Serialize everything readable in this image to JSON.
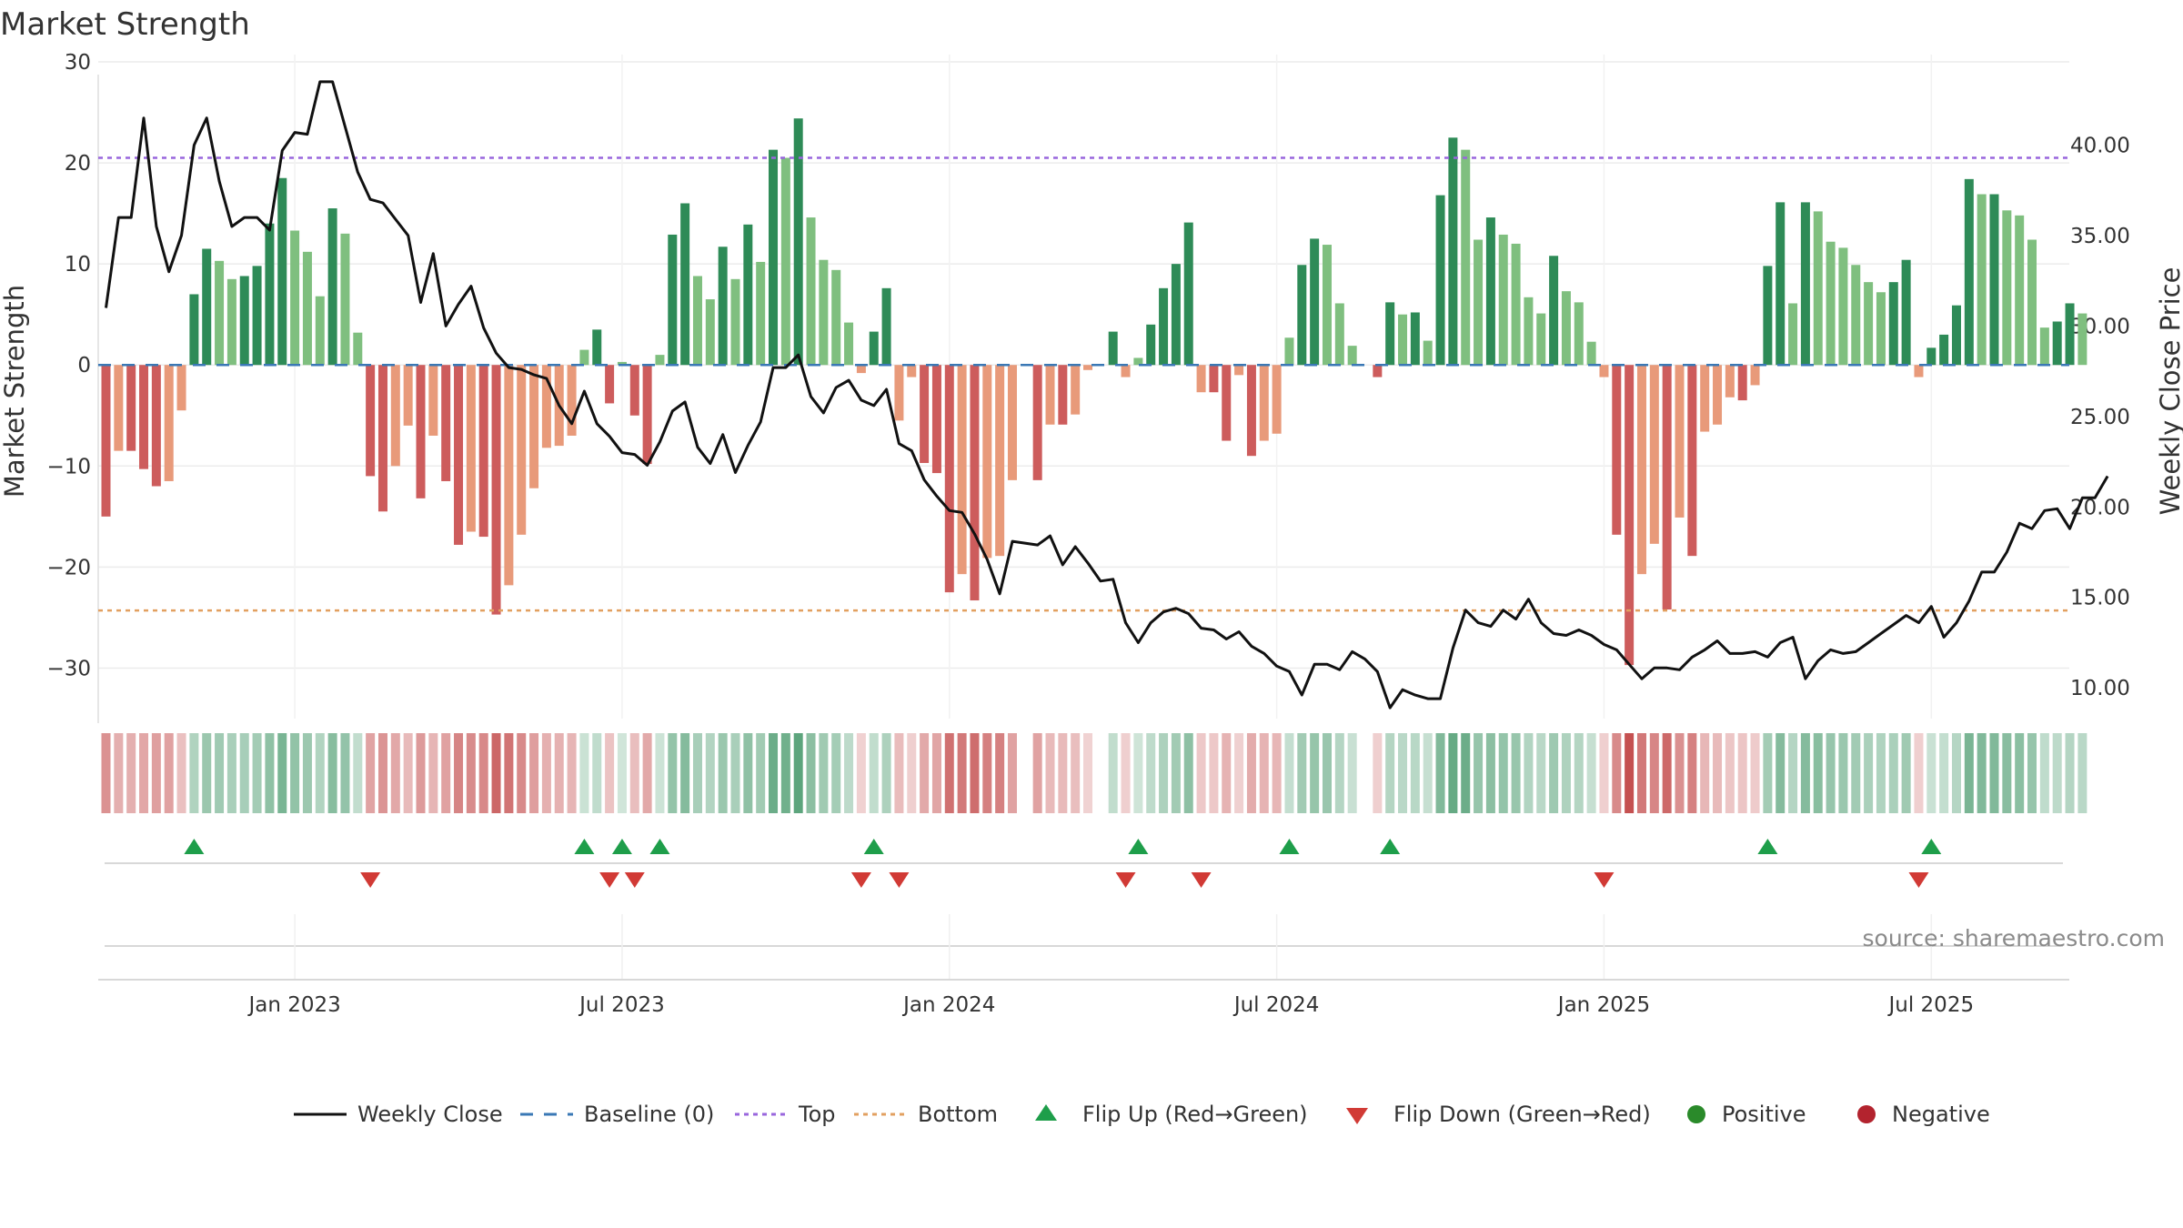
{
  "chart_data": {
    "type": "bar",
    "title": "Market Strength",
    "ylabel_left": "Market Strength",
    "ylabel_right": "Weekly Close Price",
    "ylim_left": [
      -35,
      30
    ],
    "ylim_right": [
      8.3,
      44.6
    ],
    "yticks_left": [
      30,
      20,
      10,
      0,
      -10,
      -20,
      -30
    ],
    "yticks_left_labels": [
      "30",
      "20",
      "10",
      "0",
      "−10",
      "−20",
      "−30"
    ],
    "yticks_right": [
      40,
      35,
      30,
      25,
      20,
      15,
      10
    ],
    "yticks_right_labels": [
      "40.00",
      "35.00",
      "30.00",
      "25.00",
      "20.00",
      "15.00",
      "10.00"
    ],
    "x_ticks": [
      {
        "week": 15,
        "label": "Jan 2023"
      },
      {
        "week": 41,
        "label": "Jul 2023"
      },
      {
        "week": 67,
        "label": "Jan 2024"
      },
      {
        "week": 93,
        "label": "Jul 2024"
      },
      {
        "week": 119,
        "label": "Jan 2025"
      },
      {
        "week": 145,
        "label": "Jul 2025"
      }
    ],
    "top_line": 20.5,
    "bottom_line": -24.3,
    "source_text": "source: sharemaestro.com",
    "strength": [
      -15,
      -8.5,
      -8.5,
      -10.3,
      -12,
      -11.5,
      -4.5,
      7,
      11.5,
      10.3,
      8.5,
      8.8,
      9.8,
      14,
      18.5,
      13.3,
      11.2,
      6.8,
      15.5,
      13,
      3.2,
      -11,
      -14.5,
      -10,
      -6,
      -13.2,
      -7,
      -11.5,
      -17.8,
      -16.5,
      -17,
      -24.7,
      -21.8,
      -16.8,
      -12.2,
      -8.2,
      -8,
      -7,
      1.5,
      3.5,
      -3.8,
      0.3,
      -5,
      -9.8,
      1,
      12.9,
      16,
      8.8,
      6.5,
      11.7,
      8.5,
      13.9,
      10.2,
      21.3,
      20.5,
      24.4,
      14.6,
      10.4,
      9.4,
      4.2,
      -0.8,
      3.3,
      7.6,
      -5.5,
      -1.2,
      -9.7,
      -10.7,
      -22.5,
      -20.7,
      -23.3,
      -19.1,
      -18.9,
      -11.4,
      0,
      -11.4,
      -5.9,
      -5.9,
      -4.9,
      -0.5,
      0,
      3.3,
      -1.2,
      0.7,
      4,
      7.6,
      10,
      14.1,
      -2.7,
      -2.7,
      -7.5,
      -1,
      -9,
      -7.5,
      -6.8,
      2.7,
      9.9,
      12.5,
      11.9,
      6.1,
      1.9,
      0,
      -1.2,
      6.2,
      5,
      5.2,
      2.4,
      16.8,
      22.5,
      21.3,
      12.4,
      14.6,
      12.9,
      12,
      6.7,
      5.1,
      10.8,
      7.3,
      6.2,
      2.3,
      -1.2,
      -16.8,
      -29.7,
      -20.7,
      -17.7,
      -24.2,
      -15.1,
      -18.9,
      -6.6,
      -5.9,
      -3.2,
      -3.5,
      -2,
      9.8,
      16.1,
      6.1,
      16.1,
      15.2,
      12.2,
      11.6,
      9.9,
      8.2,
      7.2,
      8.2,
      10.4,
      -1.2,
      1.7,
      3,
      5.9,
      18.4,
      16.9,
      16.9,
      15.3,
      14.8,
      12.4,
      3.7,
      4.3,
      6.1,
      5.1
    ],
    "close": [
      31,
      36,
      36,
      41.5,
      35.5,
      33,
      35,
      40,
      41.5,
      38,
      35.5,
      36,
      36,
      35.3,
      39.7,
      40.7,
      40.6,
      43.5,
      43.5,
      41,
      38.5,
      37,
      36.8,
      35.9,
      35,
      31.3,
      34,
      30,
      31.2,
      32.2,
      29.9,
      28.5,
      27.7,
      27.6,
      27.3,
      27.1,
      25.6,
      24.6,
      26.4,
      24.6,
      23.9,
      23,
      22.9,
      22.3,
      23.6,
      25.3,
      25.8,
      23.3,
      22.4,
      24,
      21.9,
      23.4,
      24.7,
      27.7,
      27.7,
      28.4,
      26.1,
      25.2,
      26.6,
      27,
      25.9,
      25.6,
      26.5,
      23.5,
      23.1,
      21.5,
      20.6,
      19.8,
      19.7,
      18.5,
      17.1,
      15.2,
      18.1,
      18,
      17.9,
      18.4,
      16.8,
      17.8,
      16.9,
      15.9,
      16,
      13.6,
      12.5,
      13.6,
      14.2,
      14.4,
      14.1,
      13.3,
      13.2,
      12.7,
      13.1,
      12.3,
      11.9,
      11.2,
      10.9,
      9.6,
      11.3,
      11.3,
      11,
      12,
      11.6,
      10.9,
      8.9,
      9.9,
      9.6,
      9.4,
      9.4,
      12.2,
      14.3,
      13.6,
      13.4,
      14.3,
      13.8,
      14.9,
      13.6,
      13,
      12.9,
      13.2,
      12.9,
      12.4,
      12.1,
      11.3,
      10.5,
      11.1,
      11.1,
      11,
      11.7,
      12.1,
      12.6,
      11.9,
      11.9,
      12,
      11.7,
      12.5,
      12.8,
      10.5,
      11.5,
      12.1,
      11.9,
      12,
      12.5,
      13,
      13.5,
      14,
      13.6,
      14.5,
      12.8,
      13.6,
      14.8,
      16.4,
      16.4,
      17.5,
      19.1,
      18.8,
      19.8,
      19.9,
      18.8,
      20.5,
      20.5,
      21.7
    ]
  },
  "legend": [
    {
      "key": "weekly-close",
      "label": "Weekly Close"
    },
    {
      "key": "baseline",
      "label": "Baseline (0)"
    },
    {
      "key": "top",
      "label": "Top"
    },
    {
      "key": "bottom",
      "label": "Bottom"
    },
    {
      "key": "flip-up",
      "label": "Flip Up (Red→Green)"
    },
    {
      "key": "flip-down",
      "label": "Flip Down (Green→Red)"
    },
    {
      "key": "positive",
      "label": "Positive"
    },
    {
      "key": "negative",
      "label": "Negative"
    }
  ],
  "colors": {
    "pos_strong": "#2e8b57",
    "pos_weak": "#7fbf7f",
    "neg_strong": "#cd5c5c",
    "neg_weak": "#e89a7a",
    "price": "#111111",
    "baseline": "#3a78b5",
    "top": "#9966dd",
    "bottom": "#e2a060",
    "flip_up": "#1e9e4a",
    "flip_down": "#d13a35",
    "positive_dot": "#2a8a2a",
    "negative_dot": "#b3232e",
    "grid": "#ececec"
  }
}
